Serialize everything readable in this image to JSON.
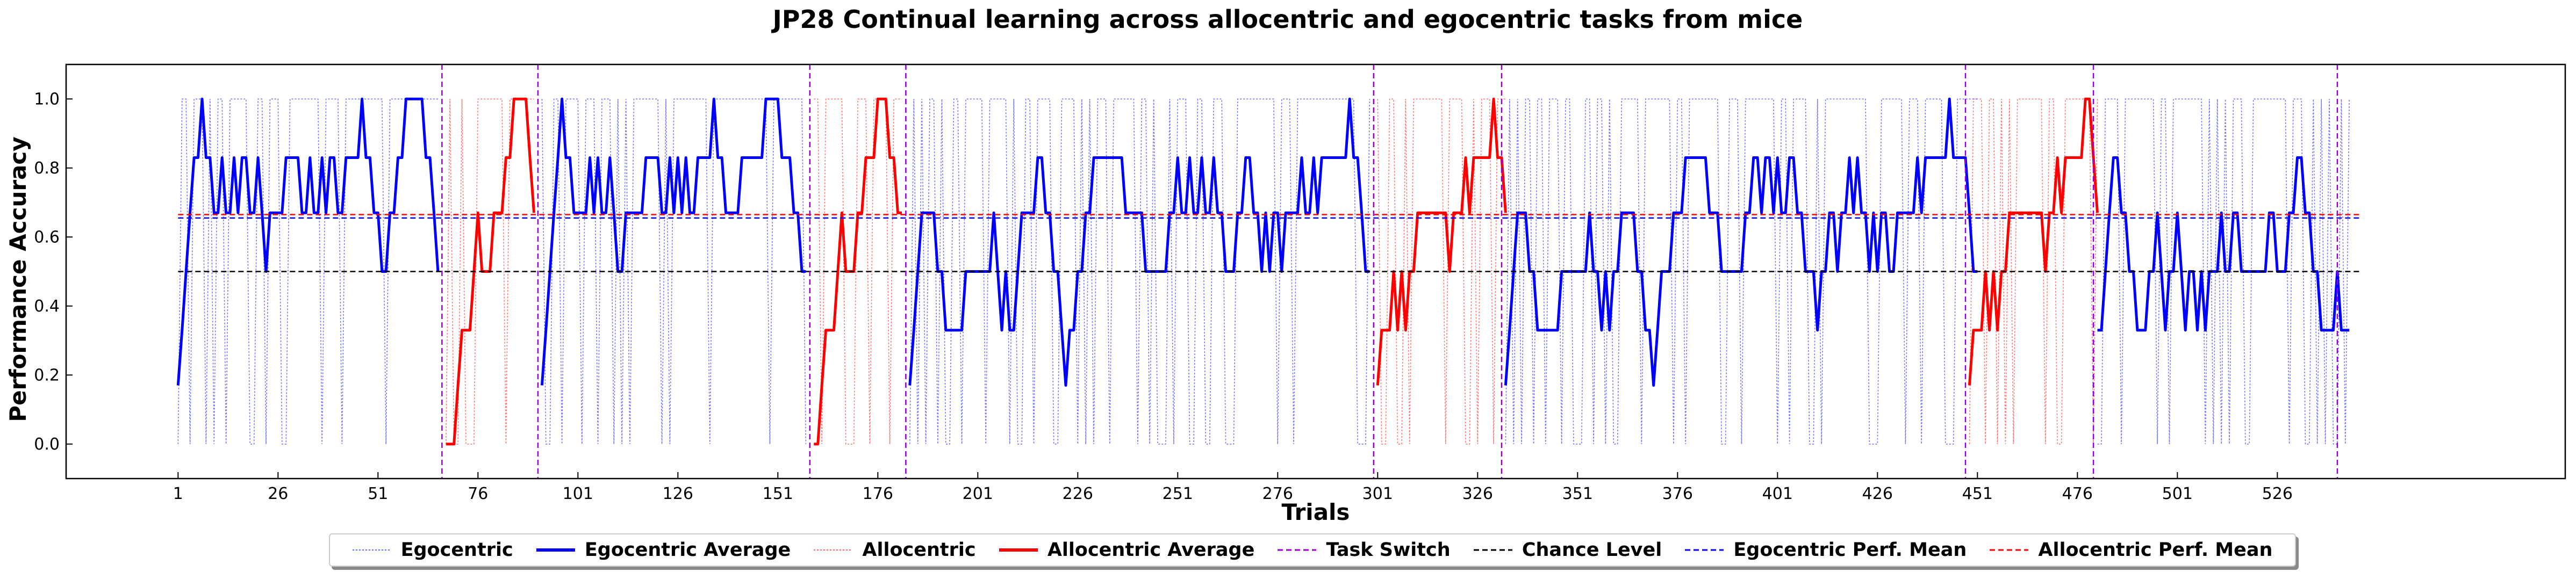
{
  "chart_data": {
    "type": "line",
    "title": "JP28 Continual learning across allocentric and egocentric tasks from mice",
    "xlabel": "Trials",
    "ylabel": "Performance Accuracy",
    "xlim": [
      -27,
      598
    ],
    "ylim": [
      -0.1,
      1.1
    ],
    "xticks": [
      1,
      26,
      51,
      76,
      101,
      126,
      151,
      176,
      201,
      226,
      251,
      276,
      301,
      326,
      351,
      376,
      401,
      426,
      451,
      476,
      501,
      526
    ],
    "yticks": [
      0.0,
      0.2,
      0.4,
      0.6,
      0.8,
      1.0
    ],
    "task_switch_x": [
      67,
      91,
      159,
      183,
      300,
      332,
      448,
      480,
      541
    ],
    "chance_level": 0.5,
    "egocentric_perf_mean": 0.655,
    "allocentric_perf_mean": 0.665,
    "mean_line_range": [
      1,
      547
    ],
    "segments": [
      {
        "task": "Egocentric",
        "start": 1,
        "average": [
          0.17,
          0.33,
          0.5,
          0.67,
          0.83,
          0.83,
          1.0,
          0.83,
          0.83,
          0.67,
          0.67,
          0.83,
          0.67,
          0.67,
          0.83,
          0.67,
          0.83,
          0.83,
          0.67,
          0.67,
          0.83,
          0.67,
          0.5,
          0.67,
          0.67,
          0.67,
          0.67,
          0.83,
          0.83,
          0.83,
          0.83,
          0.67,
          0.67,
          0.83,
          0.67,
          0.67,
          0.83,
          0.67,
          0.83,
          0.83,
          0.67,
          0.67,
          0.83,
          0.83,
          0.83,
          0.83,
          1.0,
          0.83,
          0.83,
          0.67,
          0.67,
          0.5,
          0.5,
          0.67,
          0.67,
          0.83,
          0.83,
          1.0,
          1.0,
          1.0,
          1.0,
          1.0,
          0.83,
          0.83,
          0.67,
          0.5
        ]
      },
      {
        "task": "Allocentric",
        "start": 68,
        "average": [
          0.0,
          0.0,
          0.0,
          0.17,
          0.33,
          0.33,
          0.33,
          0.5,
          0.67,
          0.5,
          0.5,
          0.5,
          0.67,
          0.67,
          0.67,
          0.83,
          0.83,
          1.0,
          1.0,
          1.0,
          1.0,
          0.83,
          0.67
        ]
      },
      {
        "task": "Egocentric",
        "start": 92,
        "average": [
          0.17,
          0.33,
          0.5,
          0.67,
          0.83,
          1.0,
          0.83,
          0.83,
          0.67,
          0.67,
          0.67,
          0.67,
          0.83,
          0.67,
          0.83,
          0.67,
          0.67,
          0.83,
          0.67,
          0.5,
          0.5,
          0.67,
          0.67,
          0.67,
          0.67,
          0.67,
          0.83,
          0.83,
          0.83,
          0.83,
          0.67,
          0.67,
          0.83,
          0.67,
          0.83,
          0.67,
          0.83,
          0.67,
          0.67,
          0.83,
          0.83,
          0.83,
          0.83,
          1.0,
          0.83,
          0.83,
          0.67,
          0.67,
          0.67,
          0.67,
          0.83,
          0.83,
          0.83,
          0.83,
          0.83,
          0.83,
          1.0,
          1.0,
          1.0,
          1.0,
          0.83,
          0.83,
          0.83,
          0.67,
          0.67,
          0.5,
          0.5
        ]
      },
      {
        "task": "Allocentric",
        "start": 160,
        "average": [
          0.0,
          0.0,
          0.17,
          0.33,
          0.33,
          0.33,
          0.5,
          0.67,
          0.5,
          0.5,
          0.5,
          0.67,
          0.67,
          0.83,
          0.83,
          0.83,
          1.0,
          1.0,
          1.0,
          0.83,
          0.83,
          0.67,
          0.67
        ]
      },
      {
        "task": "Egocentric",
        "start": 184,
        "average": [
          0.17,
          0.33,
          0.5,
          0.67,
          0.67,
          0.67,
          0.67,
          0.5,
          0.5,
          0.33,
          0.33,
          0.33,
          0.33,
          0.33,
          0.5,
          0.5,
          0.5,
          0.5,
          0.5,
          0.5,
          0.5,
          0.67,
          0.5,
          0.33,
          0.5,
          0.33,
          0.33,
          0.5,
          0.67,
          0.67,
          0.67,
          0.67,
          0.83,
          0.83,
          0.67,
          0.67,
          0.5,
          0.5,
          0.33,
          0.17,
          0.33,
          0.33,
          0.5,
          0.5,
          0.67,
          0.67,
          0.83,
          0.83,
          0.83,
          0.83,
          0.83,
          0.83,
          0.83,
          0.83,
          0.67,
          0.67,
          0.67,
          0.67,
          0.67,
          0.5,
          0.5,
          0.5,
          0.5,
          0.5,
          0.5,
          0.67,
          0.67,
          0.83,
          0.67,
          0.67,
          0.83,
          0.67,
          0.67,
          0.83,
          0.67,
          0.67,
          0.83,
          0.67,
          0.67,
          0.5,
          0.5,
          0.5,
          0.67,
          0.67,
          0.83,
          0.83,
          0.67,
          0.67,
          0.5,
          0.67,
          0.5,
          0.67,
          0.67,
          0.5,
          0.67,
          0.67,
          0.67,
          0.67,
          0.83,
          0.67,
          0.67,
          0.83,
          0.67,
          0.83,
          0.83,
          0.83,
          0.83,
          0.83,
          0.83,
          0.83,
          1.0,
          0.83,
          0.83,
          0.67,
          0.5,
          0.5
        ]
      },
      {
        "task": "Allocentric",
        "start": 301,
        "average": [
          0.17,
          0.33,
          0.33,
          0.33,
          0.5,
          0.33,
          0.5,
          0.33,
          0.5,
          0.5,
          0.67,
          0.67,
          0.67,
          0.67,
          0.67,
          0.67,
          0.67,
          0.67,
          0.5,
          0.67,
          0.67,
          0.67,
          0.83,
          0.67,
          0.83,
          0.83,
          0.83,
          0.83,
          0.83,
          1.0,
          0.83,
          0.83,
          0.67
        ]
      },
      {
        "task": "Egocentric",
        "start": 333,
        "average": [
          0.17,
          0.33,
          0.5,
          0.67,
          0.67,
          0.67,
          0.5,
          0.5,
          0.33,
          0.33,
          0.33,
          0.33,
          0.33,
          0.33,
          0.5,
          0.5,
          0.5,
          0.5,
          0.5,
          0.5,
          0.5,
          0.67,
          0.5,
          0.5,
          0.33,
          0.5,
          0.33,
          0.5,
          0.5,
          0.67,
          0.67,
          0.67,
          0.67,
          0.5,
          0.5,
          0.33,
          0.33,
          0.17,
          0.33,
          0.5,
          0.5,
          0.5,
          0.67,
          0.67,
          0.67,
          0.83,
          0.83,
          0.83,
          0.83,
          0.83,
          0.83,
          0.67,
          0.67,
          0.67,
          0.5,
          0.5,
          0.5,
          0.5,
          0.5,
          0.5,
          0.67,
          0.67,
          0.83,
          0.83,
          0.67,
          0.83,
          0.83,
          0.67,
          0.83,
          0.67,
          0.67,
          0.83,
          0.83,
          0.67,
          0.67,
          0.5,
          0.5,
          0.5,
          0.33,
          0.5,
          0.5,
          0.67,
          0.67,
          0.5,
          0.67,
          0.67,
          0.83,
          0.67,
          0.83,
          0.67,
          0.67,
          0.5,
          0.67,
          0.5,
          0.67,
          0.67,
          0.5,
          0.5,
          0.67,
          0.67,
          0.67,
          0.67,
          0.67,
          0.83,
          0.67,
          0.83,
          0.83,
          0.83,
          0.83,
          0.83,
          0.83,
          1.0,
          0.83,
          0.83,
          0.83,
          0.83,
          0.67,
          0.5,
          0.5
        ]
      },
      {
        "task": "Allocentric",
        "start": 449,
        "average": [
          0.17,
          0.33,
          0.33,
          0.33,
          0.5,
          0.33,
          0.5,
          0.33,
          0.5,
          0.5,
          0.67,
          0.67,
          0.67,
          0.67,
          0.67,
          0.67,
          0.67,
          0.67,
          0.67,
          0.5,
          0.67,
          0.67,
          0.83,
          0.67,
          0.83,
          0.83,
          0.83,
          0.83,
          0.83,
          1.0,
          1.0,
          0.83,
          0.67
        ]
      },
      {
        "task": "Egocentric",
        "start": 481,
        "average": [
          0.33,
          0.33,
          0.5,
          0.67,
          0.83,
          0.83,
          0.67,
          0.67,
          0.5,
          0.5,
          0.33,
          0.33,
          0.33,
          0.5,
          0.5,
          0.67,
          0.5,
          0.33,
          0.5,
          0.5,
          0.67,
          0.5,
          0.33,
          0.5,
          0.5,
          0.33,
          0.5,
          0.33,
          0.5,
          0.5,
          0.5,
          0.67,
          0.5,
          0.5,
          0.67,
          0.67,
          0.5,
          0.5,
          0.5,
          0.5,
          0.5,
          0.5,
          0.5,
          0.67,
          0.67,
          0.5,
          0.5,
          0.5,
          0.67,
          0.67,
          0.83,
          0.83,
          0.67,
          0.67,
          0.5,
          0.5,
          0.33,
          0.33,
          0.33,
          0.33,
          0.5,
          0.33,
          0.33,
          0.33
        ]
      }
    ],
    "legend": [
      "Egocentric",
      "Egocentric Average",
      "Allocentric",
      "Allocentric Average",
      "Task Switch",
      "Chance Level",
      "Egocentric Perf. Mean",
      "Allocentric Perf. Mean"
    ],
    "legend_position": "bottom-center",
    "colors": {
      "egocentric": "#0000ff",
      "allocentric": "#ff0000",
      "task_switch": "#9400d3",
      "chance": "#000000"
    }
  }
}
